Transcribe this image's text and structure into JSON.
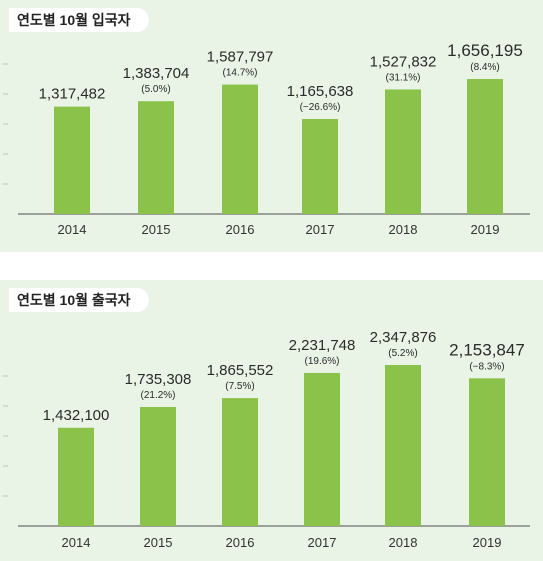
{
  "chart_data": [
    {
      "type": "bar",
      "title": "연도별 10월 입국자",
      "categories": [
        "2014",
        "2015",
        "2016",
        "2017",
        "2018",
        "2019"
      ],
      "values": [
        1317482,
        1383704,
        1587797,
        1165638,
        1527832,
        1656195
      ],
      "value_labels": [
        "1,317,482",
        "1,383,704",
        "1,587,797",
        "1,165,638",
        "1,527,832",
        "1,656,195"
      ],
      "change_labels": [
        "",
        "(5.0%)",
        "(14.7%)",
        "(−26.6%)",
        "(31.1%)",
        "(8.4%)"
      ],
      "bar_color": "#8bc34a",
      "legend": "none"
    },
    {
      "type": "bar",
      "title": "연도별 10월 출국자",
      "categories": [
        "2014",
        "2015",
        "2016",
        "2017",
        "2018",
        "2019"
      ],
      "values": [
        1432100,
        1735308,
        1865552,
        2231748,
        2347876,
        2153847
      ],
      "value_labels": [
        "1,432,100",
        "1,735,308",
        "1,865,552",
        "2,231,748",
        "2,347,876",
        "2,153,847"
      ],
      "change_labels": [
        "",
        "(21.2%)",
        "(7.5%)",
        "(19.6%)",
        "(5.2%)",
        "(−8.3%)"
      ],
      "bar_color": "#8bc34a",
      "legend": "none"
    }
  ]
}
